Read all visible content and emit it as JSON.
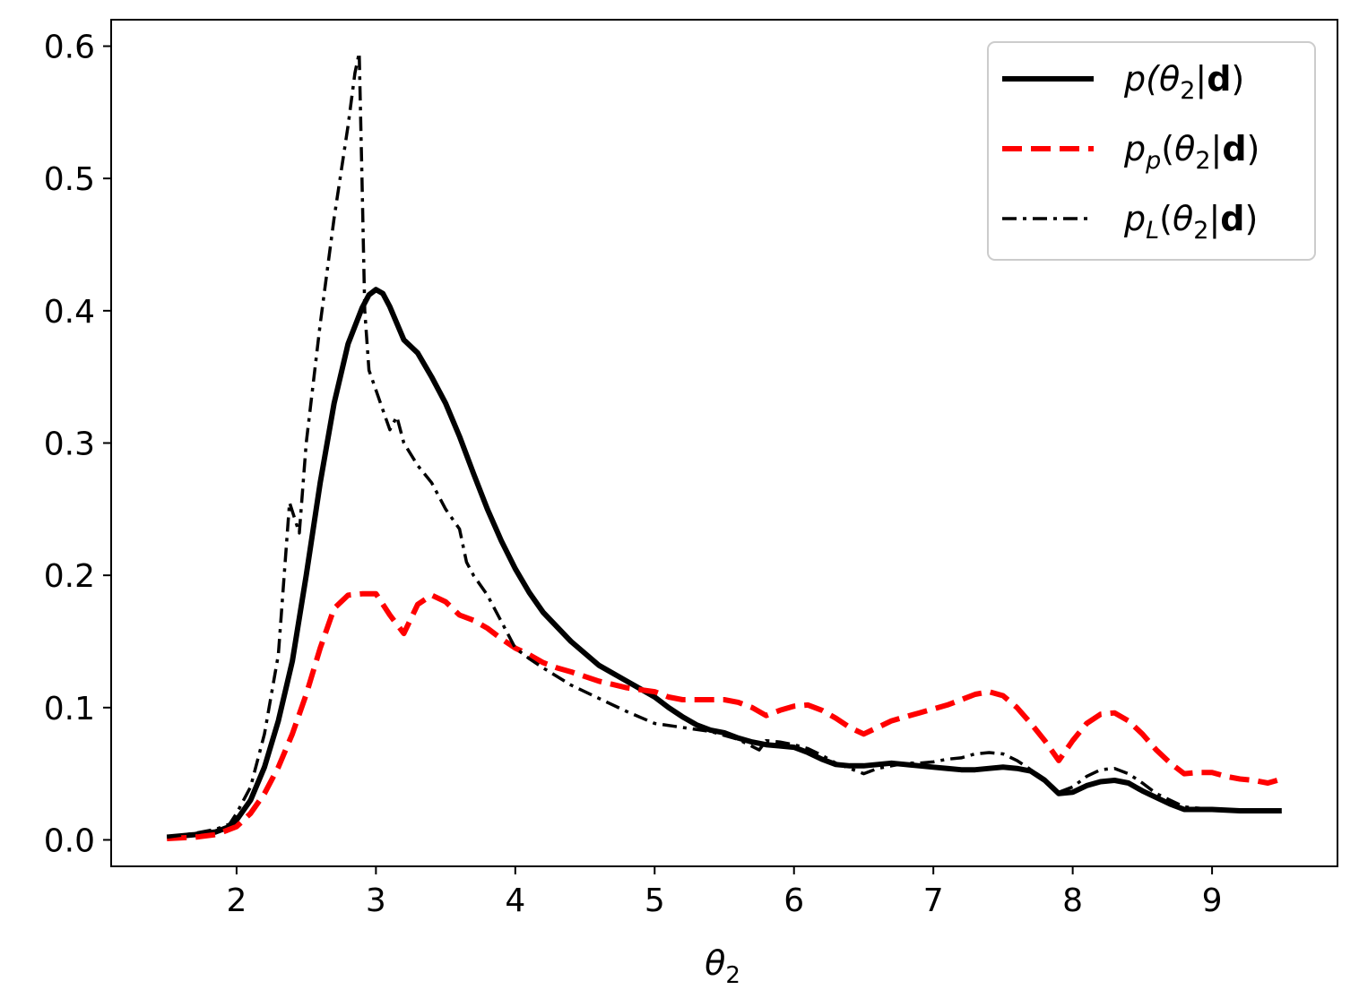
{
  "chart_data": {
    "type": "line",
    "xlabel": "θ₂",
    "ylabel": "",
    "xlim": [
      1.1,
      9.9
    ],
    "ylim": [
      -0.02,
      0.62
    ],
    "xticks": [
      2,
      3,
      4,
      5,
      6,
      7,
      8,
      9
    ],
    "yticks": [
      0.0,
      0.1,
      0.2,
      0.3,
      0.4,
      0.5,
      0.6
    ],
    "grid": false,
    "legend_position": "top-right",
    "series": [
      {
        "name": "p(θ₂|d)",
        "legend_parts": {
          "pre": "p(",
          "theta": "θ",
          "sub": "2",
          "bar": "|",
          "bold": "d",
          "post": ")"
        },
        "color": "#000000",
        "style": "solid",
        "x": [
          1.5,
          1.7,
          1.85,
          1.95,
          2.0,
          2.1,
          2.2,
          2.3,
          2.4,
          2.5,
          2.6,
          2.7,
          2.8,
          2.9,
          2.95,
          3.0,
          3.05,
          3.1,
          3.2,
          3.3,
          3.4,
          3.5,
          3.6,
          3.7,
          3.8,
          3.9,
          4.0,
          4.1,
          4.2,
          4.4,
          4.6,
          4.8,
          5.0,
          5.1,
          5.2,
          5.3,
          5.4,
          5.5,
          5.6,
          5.7,
          5.8,
          5.9,
          6.0,
          6.1,
          6.2,
          6.3,
          6.4,
          6.5,
          6.6,
          6.7,
          6.8,
          6.9,
          7.0,
          7.1,
          7.2,
          7.3,
          7.4,
          7.5,
          7.6,
          7.7,
          7.8,
          7.9,
          8.0,
          8.1,
          8.2,
          8.3,
          8.4,
          8.5,
          8.6,
          8.7,
          8.8,
          9.0,
          9.2,
          9.35,
          9.5
        ],
        "values": [
          0.002,
          0.004,
          0.006,
          0.01,
          0.015,
          0.03,
          0.055,
          0.09,
          0.135,
          0.2,
          0.27,
          0.33,
          0.375,
          0.402,
          0.412,
          0.416,
          0.413,
          0.403,
          0.378,
          0.368,
          0.35,
          0.33,
          0.305,
          0.277,
          0.25,
          0.226,
          0.205,
          0.187,
          0.172,
          0.15,
          0.132,
          0.12,
          0.108,
          0.1,
          0.093,
          0.087,
          0.083,
          0.081,
          0.077,
          0.074,
          0.072,
          0.071,
          0.07,
          0.066,
          0.061,
          0.057,
          0.056,
          0.056,
          0.057,
          0.058,
          0.057,
          0.056,
          0.055,
          0.054,
          0.053,
          0.053,
          0.054,
          0.055,
          0.054,
          0.052,
          0.045,
          0.035,
          0.036,
          0.041,
          0.044,
          0.045,
          0.043,
          0.037,
          0.032,
          0.027,
          0.023,
          0.023,
          0.022,
          0.022,
          0.022
        ]
      },
      {
        "name": "p_p(θ₂|d)",
        "legend_parts": {
          "pre": "p",
          "presub": "p",
          "open": "(",
          "theta": "θ",
          "sub": "2",
          "bar": "|",
          "bold": "d",
          "post": ")"
        },
        "color": "#ff0000",
        "style": "dashed",
        "x": [
          1.5,
          1.7,
          1.85,
          1.95,
          2.0,
          2.1,
          2.2,
          2.3,
          2.4,
          2.5,
          2.6,
          2.7,
          2.8,
          2.9,
          3.0,
          3.1,
          3.2,
          3.3,
          3.4,
          3.5,
          3.6,
          3.7,
          3.8,
          3.9,
          4.0,
          4.1,
          4.2,
          4.3,
          4.4,
          4.6,
          4.8,
          5.0,
          5.1,
          5.2,
          5.3,
          5.4,
          5.5,
          5.6,
          5.7,
          5.8,
          5.9,
          6.0,
          6.1,
          6.2,
          6.3,
          6.4,
          6.5,
          6.6,
          6.7,
          6.8,
          6.9,
          7.0,
          7.1,
          7.2,
          7.3,
          7.4,
          7.5,
          7.6,
          7.7,
          7.8,
          7.9,
          8.0,
          8.1,
          8.2,
          8.3,
          8.4,
          8.5,
          8.6,
          8.7,
          8.8,
          8.9,
          9.0,
          9.1,
          9.2,
          9.3,
          9.4,
          9.5
        ],
        "values": [
          0.001,
          0.002,
          0.004,
          0.008,
          0.01,
          0.02,
          0.035,
          0.055,
          0.08,
          0.11,
          0.145,
          0.175,
          0.185,
          0.186,
          0.186,
          0.17,
          0.156,
          0.178,
          0.185,
          0.18,
          0.17,
          0.166,
          0.16,
          0.152,
          0.145,
          0.14,
          0.134,
          0.13,
          0.127,
          0.12,
          0.115,
          0.112,
          0.108,
          0.106,
          0.106,
          0.106,
          0.106,
          0.104,
          0.1,
          0.094,
          0.098,
          0.101,
          0.102,
          0.098,
          0.092,
          0.085,
          0.08,
          0.085,
          0.09,
          0.093,
          0.096,
          0.099,
          0.102,
          0.106,
          0.11,
          0.112,
          0.109,
          0.1,
          0.088,
          0.075,
          0.06,
          0.075,
          0.088,
          0.095,
          0.096,
          0.09,
          0.08,
          0.068,
          0.058,
          0.05,
          0.051,
          0.051,
          0.048,
          0.046,
          0.045,
          0.043,
          0.046
        ]
      },
      {
        "name": "p_L(θ₂|d)",
        "legend_parts": {
          "pre": "p",
          "presub": "L",
          "open": "(",
          "theta": "θ",
          "sub": "2",
          "bar": "|",
          "bold": "d",
          "post": ")"
        },
        "color": "#000000",
        "style": "dashdot",
        "x": [
          1.5,
          1.7,
          1.85,
          1.95,
          2.0,
          2.1,
          2.2,
          2.3,
          2.38,
          2.45,
          2.5,
          2.6,
          2.7,
          2.8,
          2.85,
          2.88,
          2.9,
          2.92,
          2.95,
          3.0,
          3.05,
          3.1,
          3.15,
          3.2,
          3.3,
          3.4,
          3.5,
          3.6,
          3.65,
          3.7,
          3.8,
          3.9,
          4.0,
          4.1,
          4.2,
          4.4,
          4.6,
          4.8,
          5.0,
          5.2,
          5.4,
          5.6,
          5.75,
          5.8,
          5.9,
          6.0,
          6.1,
          6.2,
          6.3,
          6.4,
          6.5,
          6.6,
          6.7,
          6.8,
          6.9,
          7.0,
          7.1,
          7.2,
          7.3,
          7.4,
          7.5,
          7.6,
          7.7,
          7.8,
          7.9,
          8.0,
          8.1,
          8.2,
          8.3,
          8.4,
          8.5,
          8.6,
          8.7,
          8.8,
          8.9,
          9.0,
          9.2,
          9.35,
          9.5
        ],
        "values": [
          0.002,
          0.005,
          0.008,
          0.012,
          0.02,
          0.04,
          0.08,
          0.14,
          0.255,
          0.232,
          0.3,
          0.39,
          0.47,
          0.54,
          0.58,
          0.595,
          0.5,
          0.4,
          0.355,
          0.34,
          0.325,
          0.31,
          0.32,
          0.3,
          0.283,
          0.27,
          0.25,
          0.235,
          0.21,
          0.2,
          0.185,
          0.165,
          0.145,
          0.137,
          0.13,
          0.117,
          0.107,
          0.097,
          0.088,
          0.085,
          0.082,
          0.076,
          0.068,
          0.075,
          0.074,
          0.072,
          0.069,
          0.064,
          0.058,
          0.054,
          0.05,
          0.054,
          0.056,
          0.058,
          0.058,
          0.059,
          0.061,
          0.062,
          0.065,
          0.066,
          0.065,
          0.06,
          0.053,
          0.046,
          0.036,
          0.04,
          0.048,
          0.053,
          0.054,
          0.05,
          0.043,
          0.035,
          0.03,
          0.025,
          0.024,
          0.023,
          0.022,
          0.022,
          0.022
        ]
      }
    ]
  }
}
